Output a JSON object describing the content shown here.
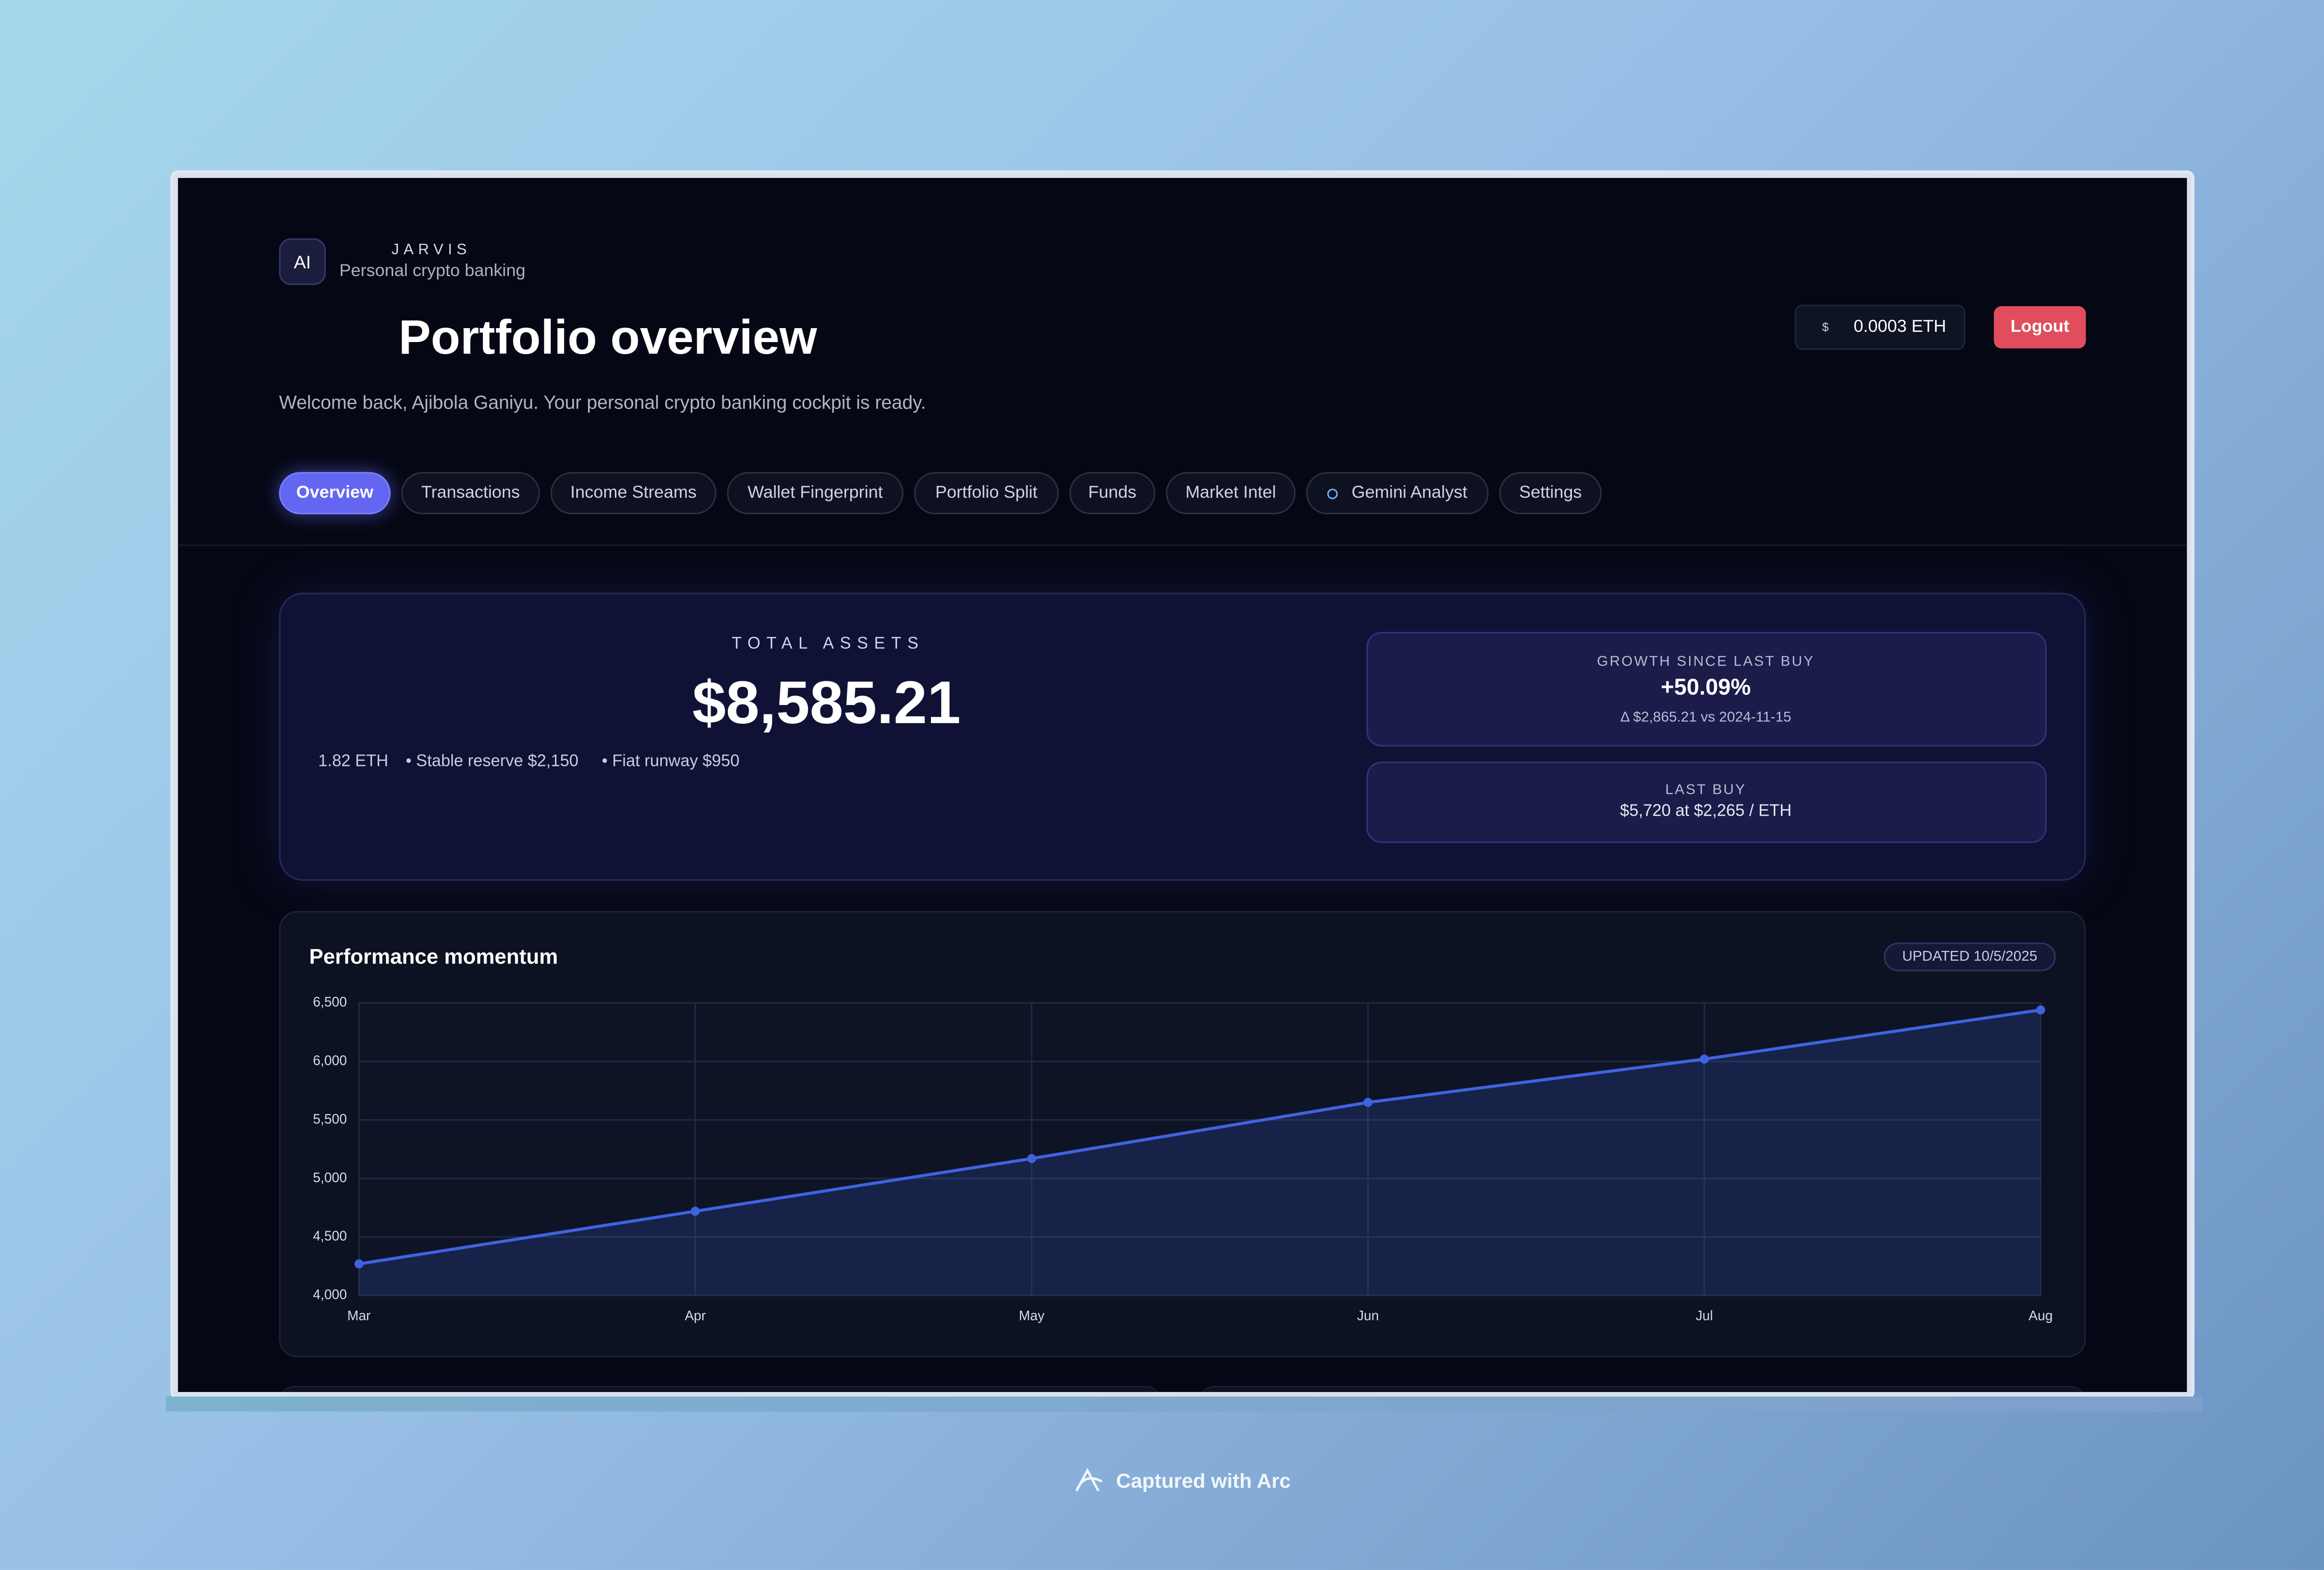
{
  "header": {
    "badge": "AI",
    "brand": "JARVIS",
    "tagline": "Personal crypto banking",
    "title": "Portfolio overview",
    "welcome": "Welcome back, Ajibola Ganiyu. Your personal crypto banking cockpit is ready.",
    "wallet_symbol": "$",
    "wallet_balance": "0.0003 ETH",
    "logout": "Logout"
  },
  "nav": {
    "items": [
      "Overview",
      "Transactions",
      "Income Streams",
      "Wallet Fingerprint",
      "Portfolio Split",
      "Funds",
      "Market Intel",
      "Gemini Analyst",
      "Settings"
    ],
    "active": 0
  },
  "summary": {
    "label": "TOTAL ASSETS",
    "total": "$8,585.21",
    "details": [
      "1.82 ETH",
      "• Stable reserve $2,150",
      "• Fiat runway $950"
    ],
    "growth": {
      "label": "GROWTH SINCE LAST BUY",
      "value": "+50.09%",
      "delta": "Δ $2,865.21 vs 2024-11-15"
    },
    "last_buy": {
      "label": "LAST BUY",
      "value": "$5,720 at $2,265 / ETH"
    }
  },
  "chart_data": {
    "type": "line",
    "title": "Performance momentum",
    "badge": "UPDATED 10/5/2025",
    "categories": [
      "Mar",
      "Apr",
      "May",
      "Jun",
      "Jul",
      "Aug"
    ],
    "values": [
      4270,
      4720,
      5170,
      5650,
      6020,
      6440
    ],
    "color": "#3f63e0",
    "ylim": [
      4000,
      6500
    ],
    "yticks": [
      {
        "value": 4000,
        "label": "4,000"
      },
      {
        "value": 4500,
        "label": "4,500"
      },
      {
        "value": 5000,
        "label": "5,000"
      },
      {
        "value": 5500,
        "label": "5,500"
      },
      {
        "value": 6000,
        "label": "6,000"
      },
      {
        "value": 6500,
        "label": "6,500"
      }
    ],
    "grid": true
  },
  "footer": "Captured with Arc"
}
